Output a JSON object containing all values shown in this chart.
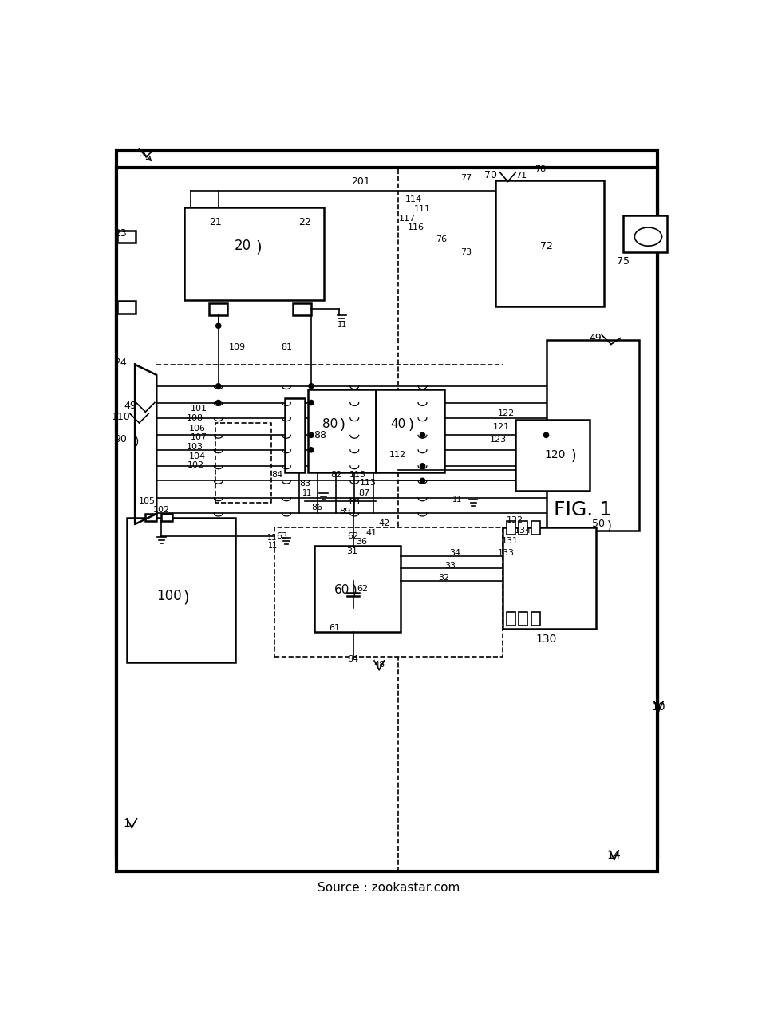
{
  "bg_color": "#ffffff",
  "line_color": "#000000",
  "source_text": "Source : zookastar.com",
  "fig_width": 9.5,
  "fig_height": 12.72
}
